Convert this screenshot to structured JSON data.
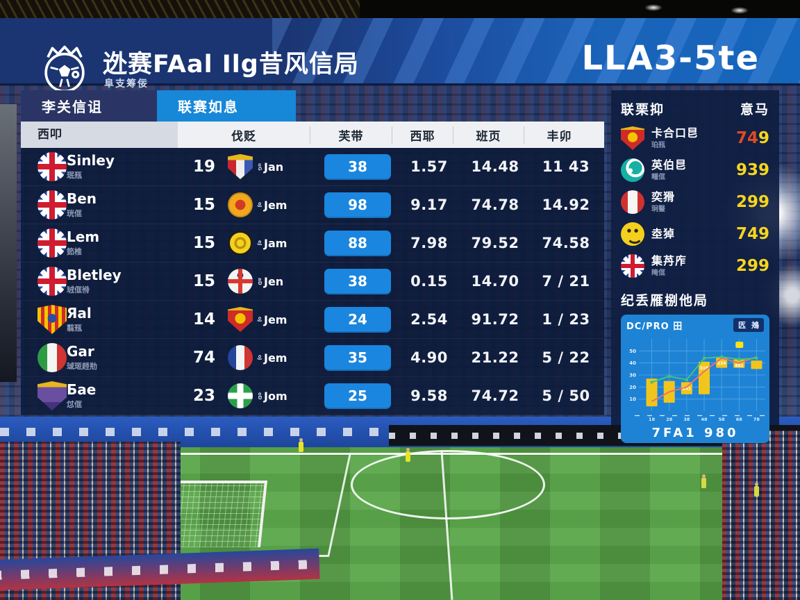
{
  "banner": {
    "title": "迯赛FAal Ilg昔风信局",
    "subtitle": "阜支筹佞",
    "right_text": "LLA3-5te"
  },
  "tabs": [
    {
      "label": "李关信诅"
    },
    {
      "label": "联赛如息"
    }
  ],
  "table": {
    "headers": [
      "西叩",
      "伐贬",
      "芙带",
      "西耶",
      "班页",
      "丰卯"
    ],
    "rows": [
      {
        "team_icon": "uk-flag",
        "name": "Sinley",
        "sub": "珉㼛",
        "count": "19",
        "crest_icon": "shield-crown",
        "tag_tiny": "uG",
        "tag": "Jan",
        "button": "38",
        "v1": "1.57",
        "v2": "14.48",
        "v3": "11 43"
      },
      {
        "team_icon": "uk-flag",
        "name": "Ben",
        "sub": "珖㑌",
        "count": "15",
        "crest_icon": "crest-round-orange",
        "tag_tiny": "oJ",
        "tag": "Jem",
        "button": "98",
        "v1": "9.17",
        "v2": "74.78",
        "v3": "14.92"
      },
      {
        "team_icon": "uk-flag",
        "name": "Lem",
        "sub": "筎椎",
        "count": "15",
        "crest_icon": "crest-yellow",
        "tag_tiny": "eJ",
        "tag": "Jam",
        "button": "88",
        "v1": "7.98",
        "v2": "79.52",
        "v3": "74.58"
      },
      {
        "team_icon": "uk-flag",
        "name": "Bletley",
        "sub": "珬㑌㣥",
        "count": "15",
        "crest_icon": "crest-england",
        "tag_tiny": "aD",
        "tag": "Jen",
        "button": "38",
        "v1": "0.15",
        "v2": "14.70",
        "v3": "7 / 21"
      },
      {
        "team_icon": "shield-esp",
        "name": "Яal",
        "sub": "翦㼛",
        "count": "14",
        "crest_icon": "shield-red",
        "tag_tiny": "oJ",
        "tag": "Jem",
        "button": "24",
        "v1": "2.54",
        "v2": "91.72",
        "v3": "1 / 23"
      },
      {
        "team_icon": "italy-flag",
        "name": "Gar",
        "sub": "珹㺿䞙㔙",
        "count": "74",
        "crest_icon": "france-flag",
        "tag_tiny": "oJ",
        "tag": "Jem",
        "button": "35",
        "v1": "4.90",
        "v2": "21.22",
        "v3": "5 / 22"
      },
      {
        "team_icon": "crest-purple",
        "name": "Бae",
        "sub": "怤㑌",
        "count": "23",
        "crest_icon": "green-cross",
        "tag_tiny": "oD",
        "tag": "Jom",
        "button": "25",
        "v1": "9.58",
        "v2": "74.72",
        "v3": "5 / 50"
      }
    ]
  },
  "sidebar": {
    "title": "联栗抑",
    "title_right": "意马",
    "items": [
      {
        "icon": "shield-red",
        "name": "卡合口㫐",
        "sub": "珀㼛",
        "value_red": "74",
        "value_yellow": "9"
      },
      {
        "icon": "teal-swirl",
        "name": "英伯㫐",
        "sub": "畽㑌",
        "value_red": "",
        "value_yellow": "939"
      },
      {
        "icon": "peru-flag",
        "name": "奕猾",
        "sub": "㺾䝂",
        "value_red": "",
        "value_yellow": "299"
      },
      {
        "icon": "smiley",
        "name": "坴㹿",
        "sub": "",
        "value_red": "",
        "value_yellow": "749"
      },
      {
        "icon": "uk-flag",
        "name": "集䒟㡸",
        "sub": "䁆㑌",
        "value_red": "",
        "value_yellow": "299"
      }
    ],
    "section_title": "纪丢雁㭭他局",
    "chart_header_left": "DC/PRO 田",
    "chart_legend_a": "匟",
    "chart_legend_b": "鴂",
    "chart_caption": "7FA1 980"
  },
  "chart_data": {
    "type": "bar",
    "subtype": "candlestick-style bars with two trend lines",
    "title": "DC/PRO 田",
    "caption": "7FA1 980",
    "x_ticks": [
      "18",
      "28",
      "38",
      "48",
      "58",
      "68",
      "78"
    ],
    "y_ticks": [
      50,
      40,
      30,
      20,
      10
    ],
    "ylim": [
      0,
      60
    ],
    "bars": [
      [
        4,
        27
      ],
      [
        7,
        25
      ],
      [
        14,
        24
      ],
      [
        14,
        41
      ],
      [
        36,
        45
      ],
      [
        36,
        43
      ],
      [
        35,
        42
      ]
    ],
    "bar_labels": [
      "",
      "",
      "231",
      "316",
      "234",
      "481",
      ""
    ],
    "bar_color": "#f2c51d",
    "marker_bar": 5,
    "marker_color": "#ffe01a",
    "grid": true,
    "series": [
      {
        "name": "trend-red",
        "color": "#e4756f",
        "values": [
          8,
          16,
          20,
          33,
          44,
          40,
          45
        ]
      },
      {
        "name": "trend-green",
        "color": "#46c17a",
        "values": [
          24,
          29,
          26,
          44,
          45,
          43,
          44
        ]
      }
    ]
  }
}
